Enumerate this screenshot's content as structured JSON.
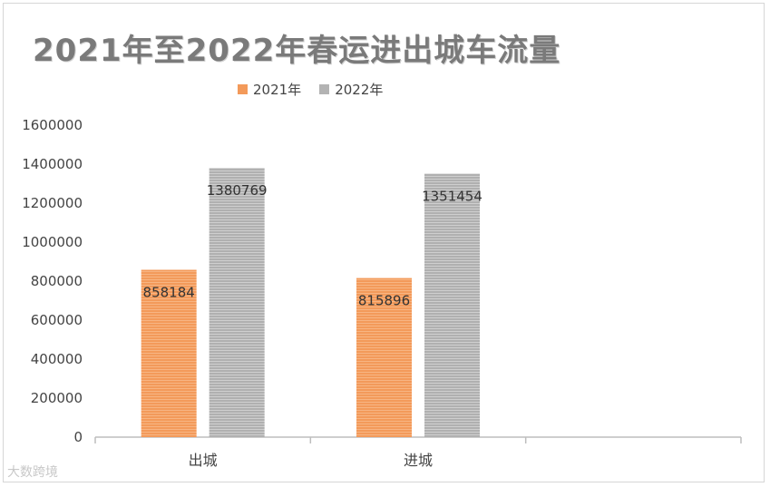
{
  "chart_data": {
    "type": "bar",
    "title": "2021年至2022年春运进出城车流量",
    "categories": [
      "出城",
      "进城"
    ],
    "series": [
      {
        "name": "2021年",
        "values": [
          858184,
          815896
        ],
        "color": "#f39a5a"
      },
      {
        "name": "2022年",
        "values": [
          1380769,
          1351454
        ],
        "color": "#b3b3b3"
      }
    ],
    "y_ticks": [
      0,
      200000,
      400000,
      600000,
      800000,
      1000000,
      1200000,
      1400000,
      1600000
    ],
    "ylim": [
      0,
      1600000
    ],
    "legend_position": "top",
    "grid": false
  },
  "watermark": "大数跨境"
}
